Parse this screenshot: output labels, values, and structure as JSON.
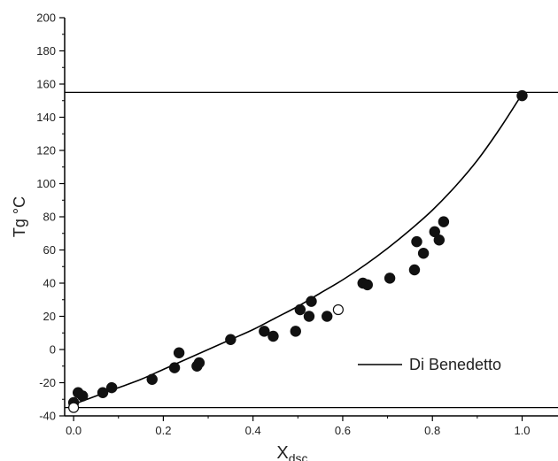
{
  "chart_data": {
    "type": "scatter",
    "xlabel": "X",
    "xlabel_sub": "dsc",
    "ylabel": "Tg °C",
    "xlim": [
      -0.02,
      1.08
    ],
    "ylim": [
      -40,
      200
    ],
    "xticks": [
      "0.0",
      "0.2",
      "0.4",
      "0.6",
      "0.8",
      "1.0"
    ],
    "yticks": [
      "-40",
      "-20",
      "0",
      "20",
      "40",
      "60",
      "80",
      "100",
      "120",
      "140",
      "160",
      "180",
      "200"
    ],
    "grid": false,
    "legend_position": "lower-right",
    "reference_lines": [
      155,
      -35
    ],
    "series": [
      {
        "name": "Di Benedetto",
        "kind": "line",
        "color": "#000000",
        "x": [
          0.0,
          0.05,
          0.1,
          0.15,
          0.2,
          0.25,
          0.3,
          0.35,
          0.4,
          0.45,
          0.5,
          0.55,
          0.6,
          0.65,
          0.7,
          0.75,
          0.8,
          0.85,
          0.9,
          0.95,
          1.0
        ],
        "y": [
          -33,
          -28,
          -23,
          -18,
          -12,
          -6,
          0,
          6,
          12,
          19,
          26,
          34,
          42,
          51,
          61,
          72,
          84,
          98,
          114,
          133,
          154
        ]
      },
      {
        "kind": "filled-points",
        "color": "#111111",
        "x": [
          0.0,
          0.01,
          0.02,
          0.065,
          0.085,
          0.175,
          0.225,
          0.235,
          0.275,
          0.28,
          0.35,
          0.425,
          0.445,
          0.495,
          0.505,
          0.525,
          0.53,
          0.565,
          0.645,
          0.655,
          0.705,
          0.76,
          0.765,
          0.78,
          0.805,
          0.815,
          0.825,
          1.0
        ],
        "y": [
          -32,
          -26,
          -28,
          -26,
          -23,
          -18,
          -11,
          -2,
          -10,
          -8,
          6,
          11,
          8,
          11,
          24,
          20,
          29,
          20,
          40,
          39,
          43,
          48,
          65,
          58,
          71,
          66,
          77,
          153
        ]
      },
      {
        "kind": "open-points",
        "color": "#111111",
        "x": [
          0.0,
          0.59
        ],
        "y": [
          -35,
          24
        ]
      }
    ]
  }
}
